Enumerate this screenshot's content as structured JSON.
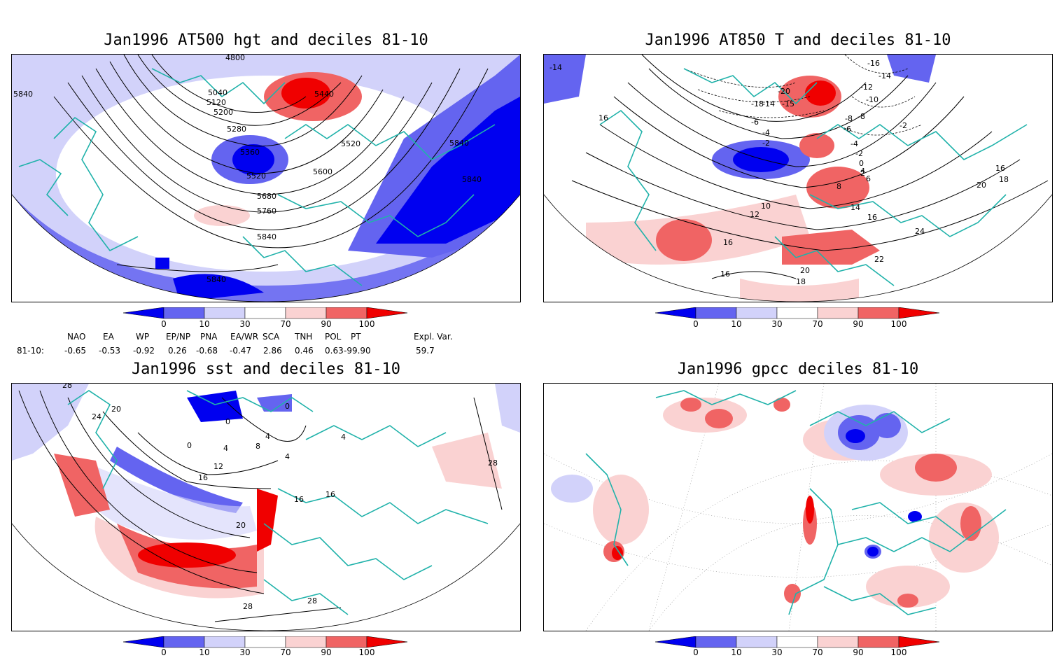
{
  "panels": [
    {
      "title": "Jan1996 AT500 hgt and deciles 81-10",
      "contour_labels": [
        "5040",
        "5120",
        "5200",
        "5280",
        "5360",
        "5440",
        "5520",
        "5520",
        "5600",
        "5680",
        "5760",
        "5840",
        "5840",
        "5840",
        "5840",
        "5840",
        "4800"
      ]
    },
    {
      "title": "Jan1996 AT850 T and deciles 81-10",
      "contour_labels": [
        "-14",
        "-16",
        "-14",
        "-12",
        "-10",
        "-8",
        "-6",
        "-4",
        "-2",
        "0",
        "2",
        "4",
        "6",
        "8",
        "10",
        "12",
        "14",
        "16",
        "16",
        "16",
        "16",
        "18",
        "18",
        "20",
        "20",
        "22",
        "24",
        "-18",
        "-15",
        "-14",
        "-8",
        "-6",
        "-4",
        "-2",
        "-20",
        "-2",
        "16"
      ]
    },
    {
      "title": "Jan1996 sst and deciles 81-10",
      "contour_labels": [
        "28",
        "24",
        "20",
        "0",
        "0",
        "4",
        "8",
        "4",
        "12",
        "16",
        "16",
        "16",
        "20",
        "28",
        "28",
        "28",
        "4",
        "4",
        "0"
      ]
    },
    {
      "title": "Jan1996 gpcc deciles 81-10",
      "contour_labels": []
    }
  ],
  "colorbar": {
    "tick_labels": [
      "0",
      "10",
      "30",
      "70",
      "90",
      "100"
    ],
    "colors": [
      "#0000f0",
      "#6464f0",
      "#d2d2fa",
      "#ffffff",
      "#fad2d2",
      "#f06464",
      "#f00000"
    ]
  },
  "indices": {
    "headers": [
      "NAO",
      "EA",
      "WP",
      "EP/NP",
      "PNA",
      "EA/WR",
      "SCA",
      "TNH",
      "POL",
      "PT",
      "Expl. Var."
    ],
    "period": "81-10:",
    "values": [
      "-0.65",
      "-0.53",
      "-0.92",
      "0.26",
      "-0.68",
      "-0.47",
      "2.86",
      "0.46",
      "0.63",
      "-99.90",
      "59.7"
    ]
  },
  "land_outline_color": "#20b2aa"
}
